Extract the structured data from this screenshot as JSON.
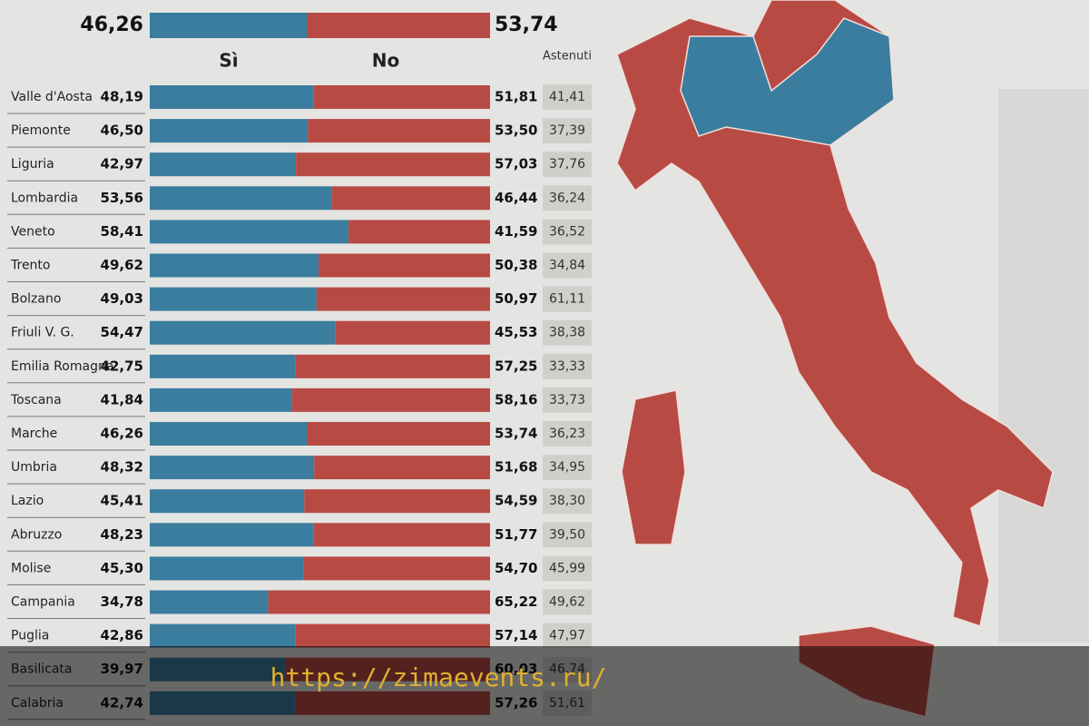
{
  "chart_data": {
    "type": "bar",
    "orientation": "horizontal",
    "stacked": true,
    "categories": [
      "Valle d'Aosta",
      "Piemonte",
      "Liguria",
      "Lombardia",
      "Veneto",
      "Trento",
      "Bolzano",
      "Friuli V. G.",
      "Emilia Romagna",
      "Toscana",
      "Marche",
      "Umbria",
      "Lazio",
      "Abruzzo",
      "Molise",
      "Campania",
      "Puglia",
      "Basilicata",
      "Calabria"
    ],
    "series": [
      {
        "name": "Sì",
        "color": "#3b7d9e",
        "values": [
          48.19,
          46.5,
          42.97,
          53.56,
          58.41,
          49.62,
          49.03,
          54.47,
          42.75,
          41.84,
          46.26,
          48.32,
          45.41,
          48.23,
          45.3,
          34.78,
          42.86,
          39.97,
          42.74
        ],
        "value_labels": [
          "48,19",
          "46,50",
          "42,97",
          "53,56",
          "58,41",
          "49,62",
          "49,03",
          "54,47",
          "42,75",
          "41,84",
          "46,26",
          "48,32",
          "45,41",
          "48,23",
          "45,30",
          "34,78",
          "42,86",
          "39,97",
          "42,74"
        ]
      },
      {
        "name": "No",
        "color": "#b84a44",
        "values": [
          51.81,
          53.5,
          57.03,
          46.44,
          41.59,
          50.38,
          50.97,
          45.53,
          57.25,
          58.16,
          53.74,
          51.68,
          54.59,
          51.77,
          54.7,
          65.22,
          57.14,
          60.03,
          57.26
        ],
        "value_labels": [
          "51,81",
          "53,50",
          "57,03",
          "46,44",
          "41,59",
          "50,38",
          "50,97",
          "45,53",
          "57,25",
          "58,16",
          "53,74",
          "51,68",
          "54,59",
          "51,77",
          "54,70",
          "65,22",
          "57,14",
          "60,03",
          "57,26"
        ]
      }
    ],
    "abstained": {
      "name": "Astenuti",
      "color": "#cfcfcb",
      "values": [
        41.41,
        37.39,
        37.76,
        36.24,
        36.52,
        34.84,
        61.11,
        38.38,
        33.33,
        33.73,
        36.23,
        34.95,
        38.3,
        39.5,
        45.99,
        49.62,
        47.97,
        46.74,
        51.61
      ],
      "value_labels": [
        "41,41",
        "37,39",
        "37,76",
        "36,24",
        "36,52",
        "34,84",
        "61,11",
        "38,38",
        "33,33",
        "33,73",
        "36,23",
        "34,95",
        "38,30",
        "39,50",
        "45,99",
        "49,62",
        "47,97",
        "46,74",
        "51,61"
      ]
    },
    "total": {
      "values": [
        46.26,
        53.74
      ],
      "value_labels": [
        "46,26",
        "53,74"
      ]
    },
    "xlim": [
      0,
      100
    ]
  },
  "watermark": "https://zimaevents.ru/"
}
